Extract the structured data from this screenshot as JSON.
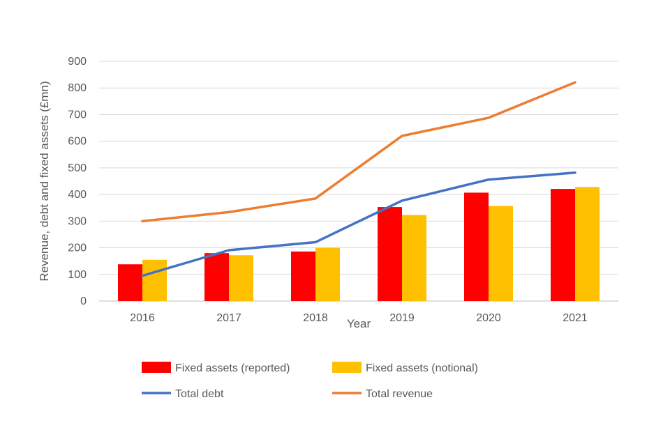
{
  "chart_data": {
    "type": "bar",
    "title": "",
    "xlabel": "Year",
    "ylabel": "Revenue,  debt and fixed assets (£mn)",
    "ylim": [
      0,
      900
    ],
    "yticks": [
      0,
      100,
      200,
      300,
      400,
      500,
      600,
      700,
      800,
      900
    ],
    "grid": true,
    "legend_position": "bottom",
    "categories": [
      "2016",
      "2017",
      "2018",
      "2019",
      "2020",
      "2021"
    ],
    "series": [
      {
        "name": "Fixed assets (reported)",
        "kind": "bar",
        "color": "#ff0000",
        "values": [
          138,
          180,
          186,
          353,
          407,
          421
        ]
      },
      {
        "name": "Fixed assets (notional)",
        "kind": "bar",
        "color": "#ffc000",
        "values": [
          155,
          172,
          200,
          323,
          357,
          428
        ]
      },
      {
        "name": "Total debt",
        "kind": "line",
        "color": "#4472c4",
        "values": [
          95,
          191,
          221,
          377,
          456,
          482
        ]
      },
      {
        "name": "Total revenue",
        "kind": "line",
        "color": "#ed7d31",
        "values": [
          300,
          334,
          385,
          620,
          688,
          821
        ]
      }
    ]
  }
}
